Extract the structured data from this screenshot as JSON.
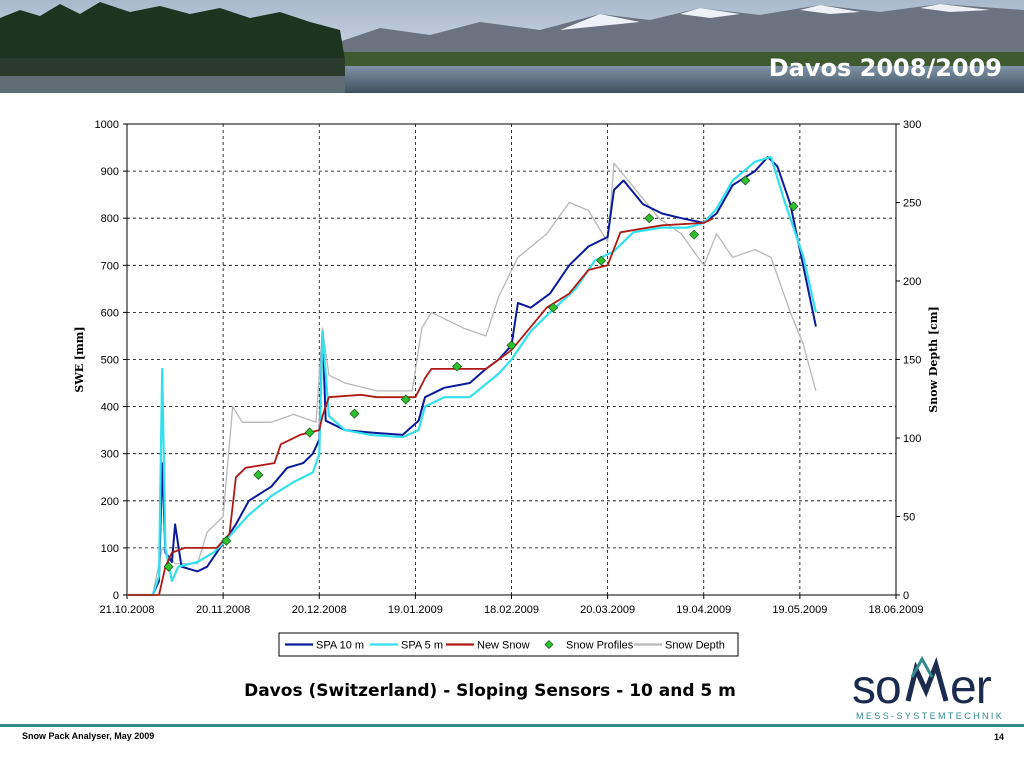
{
  "slide": {
    "title": "Davos 2008/2009",
    "caption": "Davos (Switzerland) - Sloping Sensors - 10 and 5 m",
    "footer": "Snow Pack Analyser, May 2009",
    "page_number": "14",
    "logo": {
      "main": "sommer",
      "sub": "MESS-SYSTEMTECHNIK"
    }
  },
  "colors": {
    "spa10": "#0b1a9b",
    "spa5": "#33e0ee",
    "new_snow": "#b01a14",
    "profiles": "#2fbf2f",
    "depth": "#b8b8b8",
    "footer_line": "#2f8b8d"
  },
  "chart_data": {
    "type": "line",
    "ylabel": "SWE [mm]",
    "y2label": "Snow Depth [cm]",
    "x_ticks": [
      "21.10.2008",
      "20.11.2008",
      "20.12.2008",
      "19.01.2009",
      "18.02.2009",
      "20.03.2009",
      "19.04.2009",
      "19.05.2009",
      "18.06.2009"
    ],
    "y_ticks": [
      "0",
      "100",
      "200",
      "300",
      "400",
      "500",
      "600",
      "700",
      "800",
      "900",
      "1000"
    ],
    "y2_ticks": [
      "0",
      "50",
      "100",
      "150",
      "200",
      "250",
      "300"
    ],
    "xlim": [
      "2008-10-21",
      "2009-06-18"
    ],
    "ylim": [
      0,
      1000
    ],
    "y2lim": [
      0,
      300
    ],
    "grid": true,
    "legend_position": "bottom",
    "series": [
      {
        "name": "SPA 10 m",
        "axis": "left",
        "style": "line",
        "points": [
          [
            "2008-10-21",
            0
          ],
          [
            "2008-10-29",
            0
          ],
          [
            "2008-10-31",
            30
          ],
          [
            "2008-11-01",
            280
          ],
          [
            "2008-11-02",
            90
          ],
          [
            "2008-11-04",
            70
          ],
          [
            "2008-11-05",
            150
          ],
          [
            "2008-11-07",
            60
          ],
          [
            "2008-11-12",
            50
          ],
          [
            "2008-11-15",
            60
          ],
          [
            "2008-11-17",
            80
          ],
          [
            "2008-11-20",
            110
          ],
          [
            "2008-11-24",
            150
          ],
          [
            "2008-11-28",
            200
          ],
          [
            "2008-12-05",
            230
          ],
          [
            "2008-12-10",
            270
          ],
          [
            "2008-12-15",
            280
          ],
          [
            "2008-12-18",
            300
          ],
          [
            "2008-12-20",
            330
          ],
          [
            "2008-12-21",
            560
          ],
          [
            "2008-12-22",
            370
          ],
          [
            "2008-12-28",
            350
          ],
          [
            "2009-01-05",
            345
          ],
          [
            "2009-01-15",
            340
          ],
          [
            "2009-01-20",
            370
          ],
          [
            "2009-01-22",
            420
          ],
          [
            "2009-01-28",
            440
          ],
          [
            "2009-02-05",
            450
          ],
          [
            "2009-02-10",
            480
          ],
          [
            "2009-02-14",
            500
          ],
          [
            "2009-02-18",
            530
          ],
          [
            "2009-02-20",
            620
          ],
          [
            "2009-02-24",
            610
          ],
          [
            "2009-03-02",
            640
          ],
          [
            "2009-03-08",
            700
          ],
          [
            "2009-03-14",
            740
          ],
          [
            "2009-03-20",
            760
          ],
          [
            "2009-03-22",
            860
          ],
          [
            "2009-03-25",
            880
          ],
          [
            "2009-03-31",
            830
          ],
          [
            "2009-04-06",
            810
          ],
          [
            "2009-04-12",
            800
          ],
          [
            "2009-04-19",
            790
          ],
          [
            "2009-04-23",
            810
          ],
          [
            "2009-04-28",
            870
          ],
          [
            "2009-05-05",
            900
          ],
          [
            "2009-05-09",
            930
          ],
          [
            "2009-05-12",
            910
          ],
          [
            "2009-05-16",
            830
          ],
          [
            "2009-05-20",
            700
          ],
          [
            "2009-05-24",
            570
          ]
        ]
      },
      {
        "name": "SPA 5 m",
        "axis": "left",
        "style": "line",
        "points": [
          [
            "2008-10-21",
            0
          ],
          [
            "2008-10-29",
            0
          ],
          [
            "2008-10-31",
            40
          ],
          [
            "2008-11-01",
            480
          ],
          [
            "2008-11-02",
            100
          ],
          [
            "2008-11-04",
            30
          ],
          [
            "2008-11-06",
            60
          ],
          [
            "2008-11-12",
            70
          ],
          [
            "2008-11-17",
            90
          ],
          [
            "2008-11-20",
            110
          ],
          [
            "2008-11-24",
            140
          ],
          [
            "2008-11-28",
            170
          ],
          [
            "2008-12-05",
            210
          ],
          [
            "2008-12-12",
            240
          ],
          [
            "2008-12-18",
            260
          ],
          [
            "2008-12-20",
            300
          ],
          [
            "2008-12-21",
            560
          ],
          [
            "2008-12-23",
            380
          ],
          [
            "2008-12-28",
            350
          ],
          [
            "2009-01-05",
            340
          ],
          [
            "2009-01-15",
            335
          ],
          [
            "2009-01-20",
            350
          ],
          [
            "2009-01-22",
            400
          ],
          [
            "2009-01-28",
            420
          ],
          [
            "2009-02-05",
            420
          ],
          [
            "2009-02-14",
            470
          ],
          [
            "2009-02-18",
            500
          ],
          [
            "2009-02-24",
            560
          ],
          [
            "2009-03-02",
            600
          ],
          [
            "2009-03-10",
            650
          ],
          [
            "2009-03-16",
            710
          ],
          [
            "2009-03-22",
            730
          ],
          [
            "2009-03-28",
            770
          ],
          [
            "2009-04-06",
            780
          ],
          [
            "2009-04-14",
            780
          ],
          [
            "2009-04-19",
            790
          ],
          [
            "2009-04-23",
            820
          ],
          [
            "2009-04-28",
            880
          ],
          [
            "2009-05-05",
            920
          ],
          [
            "2009-05-10",
            930
          ],
          [
            "2009-05-14",
            840
          ],
          [
            "2009-05-20",
            720
          ],
          [
            "2009-05-24",
            600
          ]
        ]
      },
      {
        "name": "New Snow",
        "axis": "left",
        "style": "line",
        "points": [
          [
            "2008-10-21",
            0
          ],
          [
            "2008-10-31",
            0
          ],
          [
            "2008-11-02",
            60
          ],
          [
            "2008-11-04",
            90
          ],
          [
            "2008-11-08",
            100
          ],
          [
            "2008-11-18",
            100
          ],
          [
            "2008-11-22",
            130
          ],
          [
            "2008-11-24",
            250
          ],
          [
            "2008-11-27",
            270
          ],
          [
            "2008-12-06",
            280
          ],
          [
            "2008-12-08",
            320
          ],
          [
            "2008-12-14",
            340
          ],
          [
            "2008-12-20",
            350
          ],
          [
            "2008-12-21",
            380
          ],
          [
            "2008-12-23",
            420
          ],
          [
            "2009-01-02",
            425
          ],
          [
            "2009-01-07",
            420
          ],
          [
            "2009-01-19",
            420
          ],
          [
            "2009-01-22",
            460
          ],
          [
            "2009-01-24",
            480
          ],
          [
            "2009-02-10",
            480
          ],
          [
            "2009-02-18",
            520
          ],
          [
            "2009-03-01",
            610
          ],
          [
            "2009-03-08",
            640
          ],
          [
            "2009-03-14",
            690
          ],
          [
            "2009-03-20",
            700
          ],
          [
            "2009-03-24",
            770
          ],
          [
            "2009-04-06",
            785
          ],
          [
            "2009-04-19",
            790
          ],
          [
            "2009-04-22",
            800
          ]
        ]
      },
      {
        "name": "Snow Profiles",
        "axis": "left",
        "style": "marker",
        "points": [
          [
            "2008-11-03",
            60
          ],
          [
            "2008-11-21",
            115
          ],
          [
            "2008-12-01",
            255
          ],
          [
            "2008-12-17",
            345
          ],
          [
            "2008-12-31",
            385
          ],
          [
            "2009-01-16",
            415
          ],
          [
            "2009-02-01",
            485
          ],
          [
            "2009-02-18",
            530
          ],
          [
            "2009-03-03",
            610
          ],
          [
            "2009-03-18",
            710
          ],
          [
            "2009-04-02",
            800
          ],
          [
            "2009-04-16",
            765
          ],
          [
            "2009-05-02",
            880
          ],
          [
            "2009-05-17",
            825
          ]
        ]
      },
      {
        "name": "Snow Depth",
        "axis": "right",
        "style": "line",
        "points": [
          [
            "2008-10-21",
            0
          ],
          [
            "2008-10-29",
            0
          ],
          [
            "2008-11-01",
            30
          ],
          [
            "2008-11-05",
            20
          ],
          [
            "2008-11-12",
            20
          ],
          [
            "2008-11-15",
            40
          ],
          [
            "2008-11-20",
            50
          ],
          [
            "2008-11-23",
            120
          ],
          [
            "2008-11-26",
            110
          ],
          [
            "2008-12-05",
            110
          ],
          [
            "2008-12-12",
            115
          ],
          [
            "2008-12-19",
            110
          ],
          [
            "2008-12-21",
            170
          ],
          [
            "2008-12-23",
            140
          ],
          [
            "2008-12-28",
            135
          ],
          [
            "2009-01-07",
            130
          ],
          [
            "2009-01-18",
            130
          ],
          [
            "2009-01-21",
            170
          ],
          [
            "2009-01-24",
            180
          ],
          [
            "2009-02-03",
            170
          ],
          [
            "2009-02-10",
            165
          ],
          [
            "2009-02-14",
            190
          ],
          [
            "2009-02-20",
            215
          ],
          [
            "2009-03-01",
            230
          ],
          [
            "2009-03-08",
            250
          ],
          [
            "2009-03-14",
            245
          ],
          [
            "2009-03-20",
            225
          ],
          [
            "2009-03-22",
            275
          ],
          [
            "2009-03-26",
            265
          ],
          [
            "2009-04-05",
            240
          ],
          [
            "2009-04-12",
            230
          ],
          [
            "2009-04-19",
            210
          ],
          [
            "2009-04-23",
            230
          ],
          [
            "2009-04-28",
            215
          ],
          [
            "2009-05-05",
            220
          ],
          [
            "2009-05-10",
            215
          ],
          [
            "2009-05-16",
            180
          ],
          [
            "2009-05-20",
            160
          ],
          [
            "2009-05-24",
            130
          ]
        ]
      }
    ]
  }
}
